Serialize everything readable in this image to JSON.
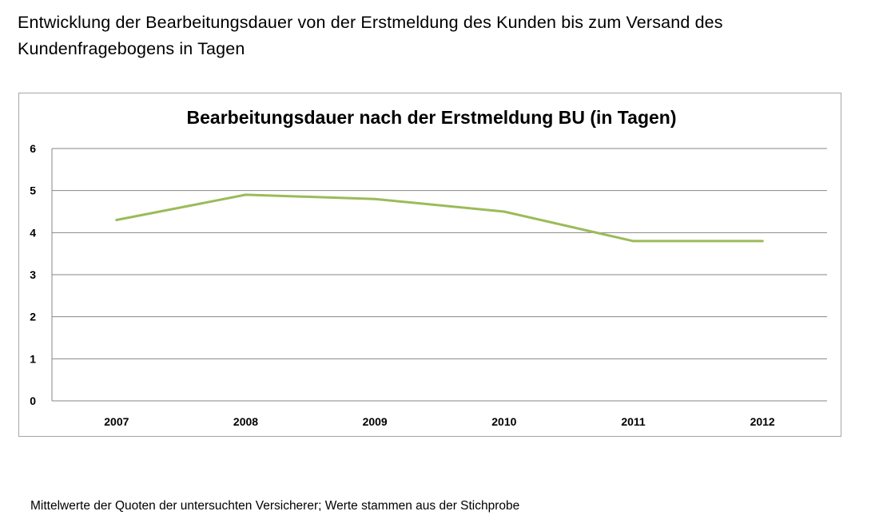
{
  "page": {
    "heading": "Entwicklung der Bearbeitungsdauer von der Erstmeldung des Kunden bis zum Versand des Kundenfragebogens in Tagen",
    "footnote": "Mittelwerte der Quoten der untersuchten Versicherer; Werte stammen aus der Stichprobe"
  },
  "chart_data": {
    "type": "line",
    "title": "Bearbeitungsdauer nach der Erstmeldung BU (in Tagen)",
    "xlabel": "",
    "ylabel": "",
    "categories": [
      "2007",
      "2008",
      "2009",
      "2010",
      "2011",
      "2012"
    ],
    "series": [
      {
        "values": [
          4.3,
          4.9,
          4.8,
          4.5,
          3.8,
          3.8
        ],
        "color": "#9bbb59"
      }
    ],
    "ylim": [
      0,
      6
    ],
    "yticks": [
      0,
      1,
      2,
      3,
      4,
      5,
      6
    ],
    "grid": true,
    "legend": "none",
    "colors": {
      "gridline": "#868686",
      "frame": "#a6a6a6"
    }
  }
}
